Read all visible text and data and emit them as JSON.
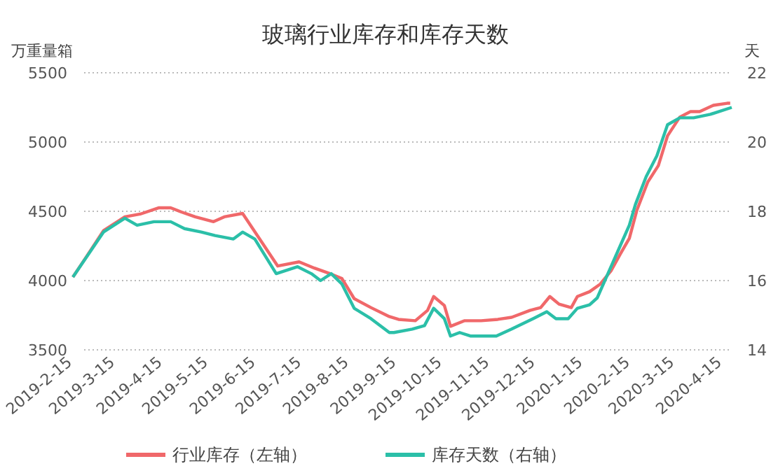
{
  "chart_data": {
    "type": "line",
    "title": "玻璃行业库存和库存天数",
    "ylabel": "万重量箱",
    "y2label": "天",
    "xlim": [
      "2019-02-15",
      "2020-04-21"
    ],
    "xticks": [
      {
        "value": "2019-02-15",
        "label": "2019-2-15"
      },
      {
        "value": "2019-03-15",
        "label": "2019-3-15"
      },
      {
        "value": "2019-04-15",
        "label": "2019-4-15"
      },
      {
        "value": "2019-05-15",
        "label": "2019-5-15"
      },
      {
        "value": "2019-06-15",
        "label": "2019-6-15"
      },
      {
        "value": "2019-07-15",
        "label": "2019-7-15"
      },
      {
        "value": "2019-08-15",
        "label": "2019-8-15"
      },
      {
        "value": "2019-09-15",
        "label": "2019-9-15"
      },
      {
        "value": "2019-10-15",
        "label": "2019-10-15"
      },
      {
        "value": "2019-11-15",
        "label": "2019-11-15"
      },
      {
        "value": "2019-12-15",
        "label": "2019-12-15"
      },
      {
        "value": "2020-01-15",
        "label": "2020-1-15"
      },
      {
        "value": "2020-02-15",
        "label": "2020-2-15"
      },
      {
        "value": "2020-03-15",
        "label": "2020-3-15"
      },
      {
        "value": "2020-04-15",
        "label": "2020-4-15"
      }
    ],
    "ylim": [
      3500,
      5500
    ],
    "yticks": [
      3500,
      4000,
      4500,
      5000,
      5500
    ],
    "y2lim": [
      14,
      22
    ],
    "y2ticks": [
      14,
      16,
      18,
      20,
      22
    ],
    "grid": "y",
    "legend": "bottom",
    "marker": "none",
    "line_style": "solid",
    "series": [
      {
        "name": "行业库存（左轴）",
        "color": "#f0686a",
        "x": [
          "2019-02-15",
          "2019-02-24",
          "2019-03-07",
          "2019-03-21",
          "2019-03-31",
          "2019-04-12",
          "2019-04-20",
          "2019-04-27",
          "2019-05-06",
          "2019-05-18",
          "2019-05-25",
          "2019-06-06",
          "2019-06-29",
          "2019-07-13",
          "2019-07-23",
          "2019-08-01",
          "2019-08-10",
          "2019-08-18",
          "2019-08-29",
          "2019-09-10",
          "2019-09-16",
          "2019-09-27",
          "2019-10-05",
          "2019-10-09",
          "2019-10-16",
          "2019-10-20",
          "2019-10-29",
          "2019-11-09",
          "2019-11-20",
          "2019-11-29",
          "2019-12-11",
          "2019-12-18",
          "2019-12-24",
          "2019-12-30",
          "2020-01-07",
          "2020-01-11",
          "2020-01-19",
          "2020-01-26",
          "2020-02-02",
          "2020-02-08",
          "2020-02-14",
          "2020-02-19",
          "2020-02-26",
          "2020-03-04",
          "2020-03-10",
          "2020-03-18",
          "2020-03-25",
          "2020-03-31",
          "2020-04-09",
          "2020-04-18",
          "2020-04-20"
        ],
        "values": [
          4025,
          4175,
          4360,
          4460,
          4480,
          4525,
          4525,
          4495,
          4460,
          4425,
          4460,
          4485,
          4105,
          4135,
          4090,
          4055,
          4015,
          3870,
          3805,
          3740,
          3720,
          3710,
          3785,
          3885,
          3820,
          3670,
          3710,
          3710,
          3720,
          3735,
          3785,
          3805,
          3885,
          3830,
          3805,
          3885,
          3920,
          3975,
          4070,
          4190,
          4305,
          4510,
          4710,
          4830,
          5045,
          5180,
          5220,
          5220,
          5265,
          5280,
          5280
        ]
      },
      {
        "name": "库存天数（右轴）",
        "color": "#2bbfa8",
        "axis": "y2",
        "x": [
          "2019-02-15",
          "2019-03-07",
          "2019-03-21",
          "2019-03-29",
          "2019-04-09",
          "2019-04-20",
          "2019-04-29",
          "2019-05-10",
          "2019-05-19",
          "2019-05-31",
          "2019-06-06",
          "2019-06-14",
          "2019-06-28",
          "2019-07-12",
          "2019-07-21",
          "2019-07-27",
          "2019-08-03",
          "2019-08-10",
          "2019-08-18",
          "2019-08-29",
          "2019-09-10",
          "2019-09-13",
          "2019-09-25",
          "2019-10-03",
          "2019-10-09",
          "2019-10-16",
          "2019-10-20",
          "2019-10-26",
          "2019-11-02",
          "2019-11-19",
          "2019-11-29",
          "2019-12-13",
          "2019-12-22",
          "2019-12-28",
          "2020-01-05",
          "2020-01-11",
          "2020-01-19",
          "2020-01-24",
          "2020-02-01",
          "2020-02-08",
          "2020-02-14",
          "2020-02-18",
          "2020-02-25",
          "2020-03-03",
          "2020-03-10",
          "2020-03-18",
          "2020-03-27",
          "2020-04-07",
          "2020-04-21"
        ],
        "values": [
          16.1,
          17.4,
          17.8,
          17.6,
          17.7,
          17.7,
          17.5,
          17.4,
          17.3,
          17.2,
          17.4,
          17.2,
          16.2,
          16.4,
          16.2,
          16.0,
          16.2,
          15.9,
          15.2,
          14.9,
          14.5,
          14.5,
          14.6,
          14.7,
          15.2,
          14.9,
          14.4,
          14.5,
          14.4,
          14.4,
          14.6,
          14.9,
          15.1,
          14.9,
          14.9,
          15.2,
          15.3,
          15.5,
          16.3,
          17.0,
          17.6,
          18.2,
          19.0,
          19.6,
          20.5,
          20.7,
          20.7,
          20.8,
          21.0
        ]
      }
    ]
  }
}
